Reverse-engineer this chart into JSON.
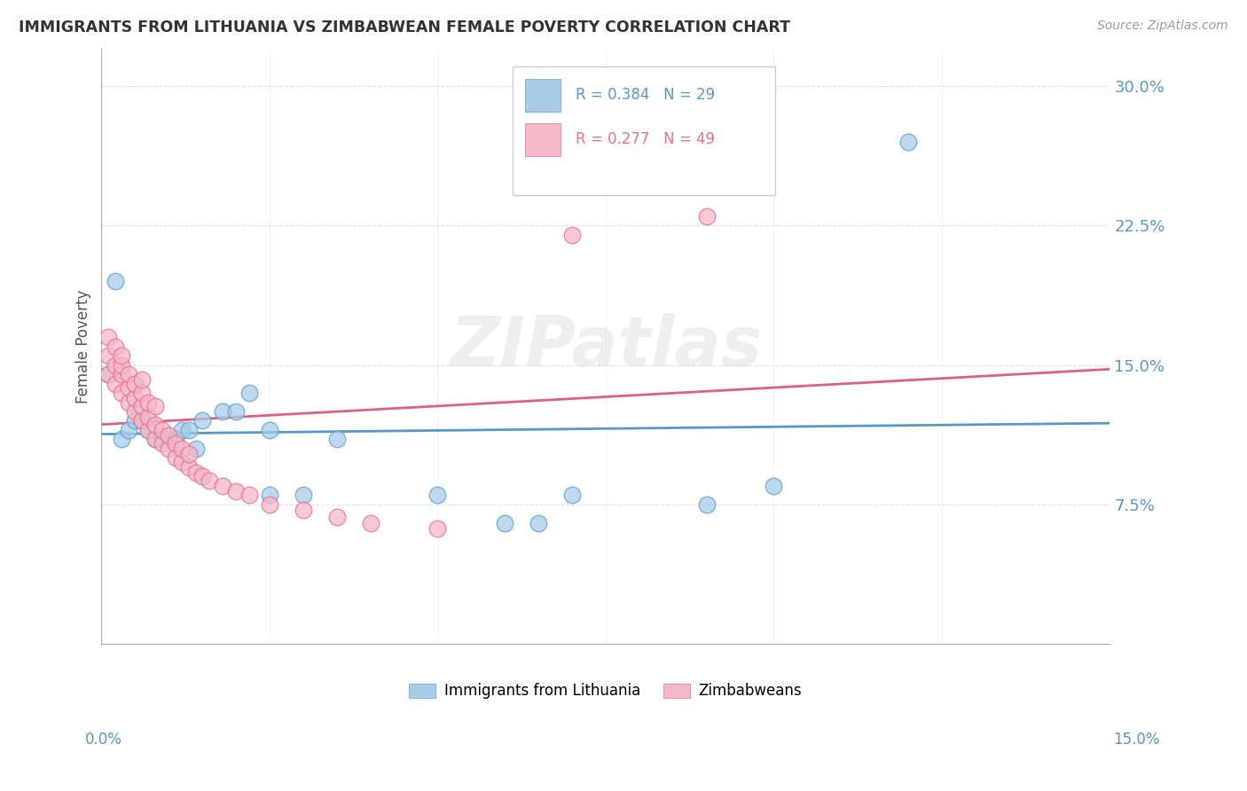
{
  "title": "IMMIGRANTS FROM LITHUANIA VS ZIMBABWEAN FEMALE POVERTY CORRELATION CHART",
  "source": "Source: ZipAtlas.com",
  "ylabel": "Female Poverty",
  "ytick_labels": [
    "7.5%",
    "15.0%",
    "22.5%",
    "30.0%"
  ],
  "ytick_values": [
    0.075,
    0.15,
    0.225,
    0.3
  ],
  "xlim": [
    0.0,
    0.15
  ],
  "ylim": [
    0.0,
    0.32
  ],
  "watermark": "ZIPatlas",
  "blue_color": "#a8cce8",
  "pink_color": "#f4b8c8",
  "blue_edge_color": "#5ba3d0",
  "pink_edge_color": "#e87090",
  "blue_line_color": "#5599cc",
  "pink_line_color": "#e06080",
  "axis_label_color": "#5599cc",
  "title_color": "#333333",
  "source_color": "#999999",
  "legend_text_color": "#5599cc",
  "legend_r1_color": "#5599cc",
  "legend_r2_color": "#e87090",
  "grid_color": "#dddddd",
  "lithuania_x": [
    0.001,
    0.002,
    0.003,
    0.004,
    0.005,
    0.006,
    0.007,
    0.008,
    0.009,
    0.01,
    0.011,
    0.012,
    0.013,
    0.014,
    0.015,
    0.018,
    0.02,
    0.022,
    0.025,
    0.03,
    0.035,
    0.05,
    0.06,
    0.065,
    0.07,
    0.09,
    0.1,
    0.12,
    0.025
  ],
  "lithuania_y": [
    0.145,
    0.195,
    0.11,
    0.115,
    0.12,
    0.12,
    0.115,
    0.11,
    0.11,
    0.11,
    0.11,
    0.115,
    0.115,
    0.105,
    0.12,
    0.125,
    0.125,
    0.135,
    0.08,
    0.08,
    0.11,
    0.08,
    0.065,
    0.065,
    0.08,
    0.075,
    0.085,
    0.27,
    0.115
  ],
  "zimbabwe_x": [
    0.001,
    0.001,
    0.001,
    0.002,
    0.002,
    0.002,
    0.003,
    0.003,
    0.003,
    0.003,
    0.004,
    0.004,
    0.004,
    0.005,
    0.005,
    0.005,
    0.006,
    0.006,
    0.006,
    0.006,
    0.007,
    0.007,
    0.007,
    0.008,
    0.008,
    0.008,
    0.009,
    0.009,
    0.01,
    0.01,
    0.011,
    0.011,
    0.012,
    0.012,
    0.013,
    0.013,
    0.014,
    0.015,
    0.016,
    0.018,
    0.02,
    0.022,
    0.025,
    0.03,
    0.035,
    0.04,
    0.05,
    0.09,
    0.07
  ],
  "zimbabwe_y": [
    0.145,
    0.155,
    0.165,
    0.14,
    0.15,
    0.16,
    0.135,
    0.145,
    0.15,
    0.155,
    0.13,
    0.138,
    0.145,
    0.125,
    0.132,
    0.14,
    0.12,
    0.128,
    0.135,
    0.142,
    0.115,
    0.122,
    0.13,
    0.11,
    0.118,
    0.128,
    0.108,
    0.115,
    0.105,
    0.112,
    0.1,
    0.108,
    0.098,
    0.105,
    0.095,
    0.102,
    0.092,
    0.09,
    0.088,
    0.085,
    0.082,
    0.08,
    0.075,
    0.072,
    0.068,
    0.065,
    0.062,
    0.23,
    0.22
  ]
}
